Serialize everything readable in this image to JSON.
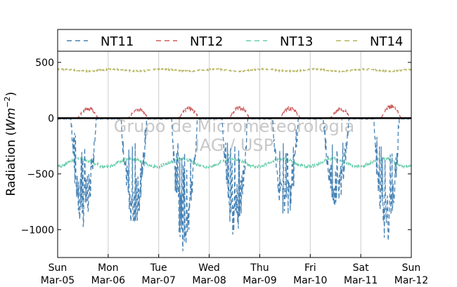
{
  "chart_data": {
    "type": "line",
    "ylabel": "Radiation (Wm⁻²)",
    "ylabel_prefix": "Radiation (",
    "ylabel_unit": "Wm",
    "ylabel_exp": "−2",
    "ylabel_suffix": ")",
    "ylim": [
      -1250,
      600
    ],
    "yticks": [
      500,
      0,
      -500,
      -1000
    ],
    "ytick_labels": [
      "500",
      "0",
      "−500",
      "−1000"
    ],
    "xlim": [
      0,
      7
    ],
    "x_unit": "days since Sun Mar-05 00:00",
    "xticks": [
      {
        "day": "Sun",
        "date": "Mar-05"
      },
      {
        "day": "Mon",
        "date": "Mar-06"
      },
      {
        "day": "Tue",
        "date": "Mar-07"
      },
      {
        "day": "Wed",
        "date": "Mar-08"
      },
      {
        "day": "Thu",
        "date": "Mar-09"
      },
      {
        "day": "Fri",
        "date": "Mar-10"
      },
      {
        "day": "Sat",
        "date": "Mar-11"
      },
      {
        "day": "Sun",
        "date": "Mar-12"
      }
    ],
    "grid": "vertical",
    "zero_line": true,
    "legend_position": "top, outside plot",
    "watermark": [
      "Grupo de Micrometeorologia",
      "IAG / USP"
    ],
    "series": [
      {
        "name": "NT11",
        "color": "#4682b4",
        "style": "dashed",
        "day_minimum": [
          -1010,
          -1000,
          -1240,
          -1080,
          -980,
          -820,
          -1150
        ],
        "description": "~0 at night, deep negative dips each daytime"
      },
      {
        "name": "NT12",
        "color": "#cd5c5c",
        "style": "dashed",
        "day_peak": [
          110,
          95,
          105,
          120,
          115,
          100,
          135
        ],
        "description": "~0 at night, positive peaks each daytime"
      },
      {
        "name": "NT13",
        "color": "#66cdaa",
        "style": "dashed",
        "mean": -400,
        "range": [
          -440,
          -340
        ]
      },
      {
        "name": "NT14",
        "color": "#b5b35c",
        "style": "dashed",
        "mean": 430,
        "range": [
          415,
          450
        ]
      }
    ]
  }
}
